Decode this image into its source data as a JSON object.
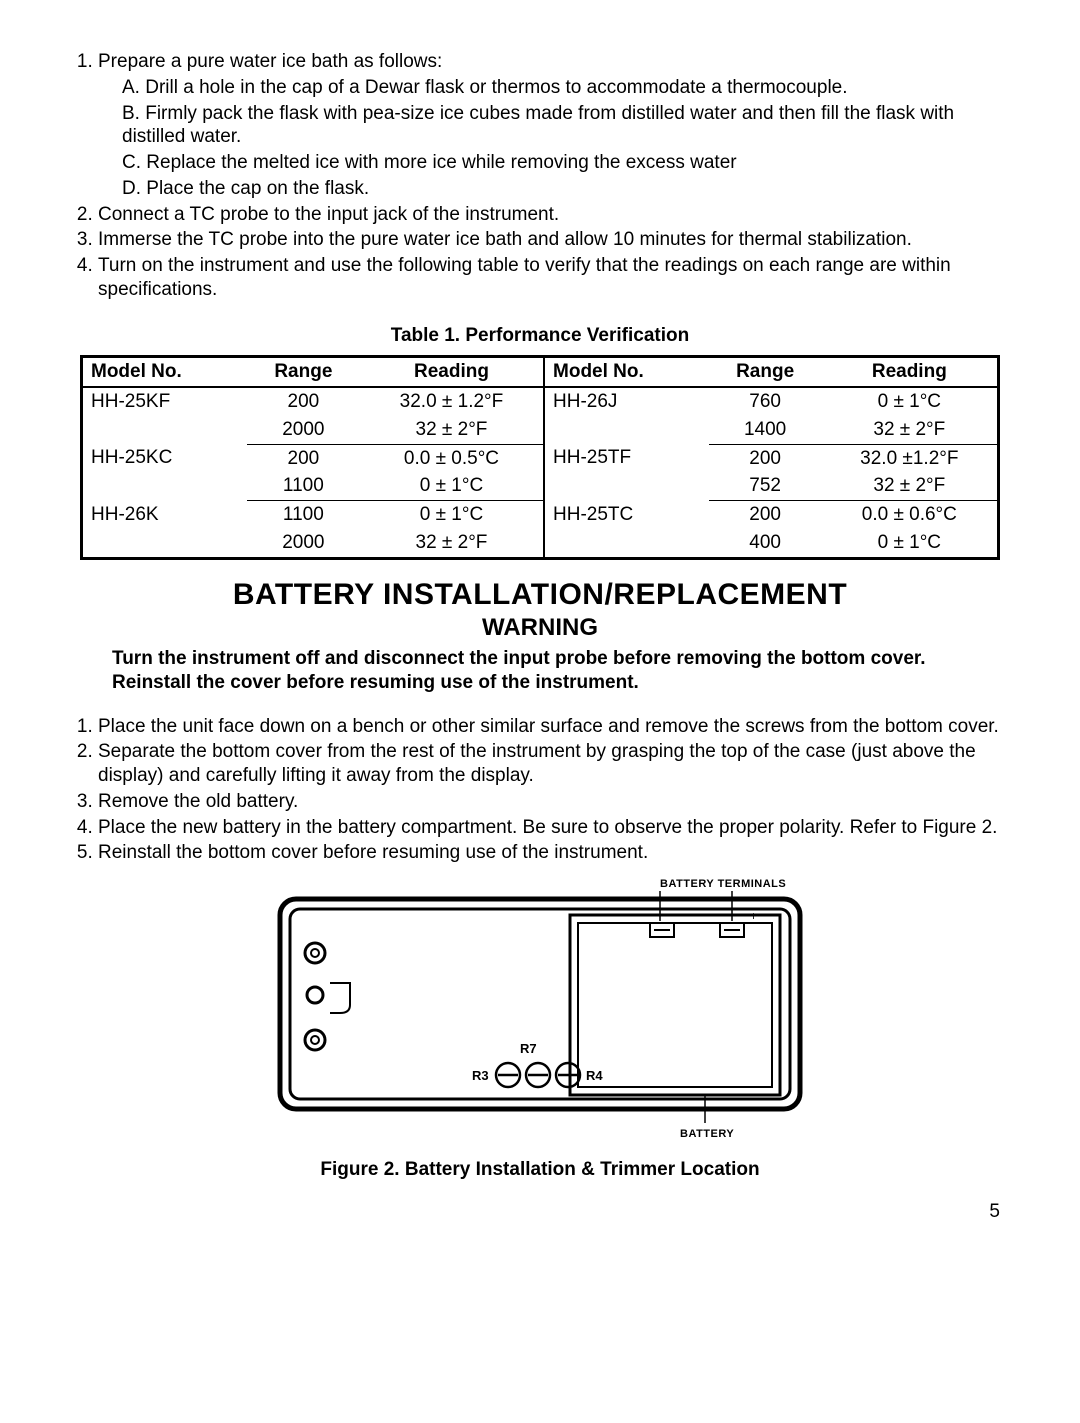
{
  "proc1": {
    "items": [
      "Prepare a pure water ice bath as follows:",
      "Connect a TC probe to the input jack of the instrument.",
      "Immerse the TC probe into the pure water ice bath and allow 10 minutes for thermal stabilization.",
      "Turn on the instrument and use the following table to verify that the readings on each range are within specifications."
    ],
    "sub": [
      "Drill a hole in the cap of a Dewar flask or thermos to accommodate a thermocouple.",
      "Firmly pack the flask with pea-size ice cubes made from distilled water and then fill the flask with distilled water.",
      "Replace the melted ice with more ice while removing the excess water",
      "Place the cap on the flask."
    ],
    "sub_labels": [
      "A.",
      "B.",
      "C.",
      "D."
    ]
  },
  "table": {
    "title": "Table 1. Performance Verification",
    "headers": [
      "Model No.",
      "Range",
      "Reading",
      "Model No.",
      "Range",
      "Reading"
    ],
    "rows": [
      {
        "l_model": "HH-25KF",
        "l_range1": "200",
        "l_read1": "32.0 ± 1.2°F",
        "l_range2": "2000",
        "l_read2": "32 ± 2°F",
        "r_model": "HH-26J",
        "r_range1": "760",
        "r_read1": "0 ± 1°C",
        "r_range2": "1400",
        "r_read2": "32 ± 2°F"
      },
      {
        "l_model": "HH-25KC",
        "l_range1": "200",
        "l_read1": "0.0 ± 0.5°C",
        "l_range2": "1100",
        "l_read2": "0 ± 1°C",
        "r_model": "HH-25TF",
        "r_range1": "200",
        "r_read1": "32.0 ±1.2°F",
        "r_range2": "752",
        "r_read2": "32 ± 2°F"
      },
      {
        "l_model": "HH-26K",
        "l_range1": "1100",
        "l_read1": "0 ± 1°C",
        "l_range2": "2000",
        "l_read2": "32 ± 2°F",
        "r_model": "HH-25TC",
        "r_range1": "200",
        "r_read1": "0.0 ± 0.6°C",
        "r_range2": "400",
        "r_read2": "0 ± 1°C"
      }
    ]
  },
  "battery": {
    "heading": "BATTERY INSTALLATION/REPLACEMENT",
    "subheading": "WARNING",
    "warning": "Turn the instrument off and disconnect the input probe before removing the bottom cover. Reinstall the cover before resuming use of the instrument.",
    "steps": [
      "Place the unit face down on a bench or other similar surface and remove the screws from the bottom cover.",
      "Separate the bottom cover from the rest of the instrument by grasping the top of the case (just above the display) and carefully lifting it away from the display.",
      "Remove the old battery.",
      "Place the new battery in the battery compartment. Be sure to observe the proper polarity. Refer to Figure 2.",
      "Reinstall the bottom cover before resuming use of the instrument."
    ]
  },
  "figure": {
    "terminals_label": "BATTERY TERMINALS",
    "battery_label": "BATTERY",
    "r7": "R7",
    "r3": "R3",
    "r4": "R4",
    "caption": "Figure 2. Battery Installation & Trimmer Location"
  },
  "page": "5"
}
